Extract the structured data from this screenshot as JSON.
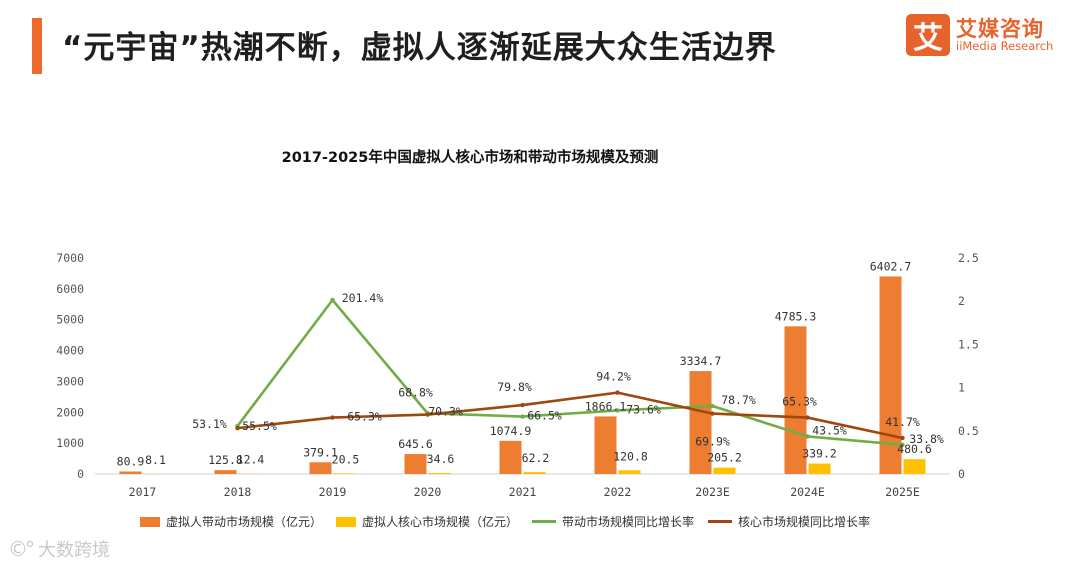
{
  "header": {
    "title": "“元宇宙”热潮不断，虚拟人逐渐延展大众生活边界",
    "logo_mark": "艾",
    "logo_cn": "艾媒咨询",
    "logo_en": "iiMedia Research"
  },
  "watermark": {
    "icon": "©°",
    "text": "大数跨境"
  },
  "colors": {
    "accent": "#ee6a2a",
    "bar1": "#ed7d31",
    "bar2": "#ffc000",
    "line1": "#70ad47",
    "line2": "#9e480e"
  },
  "chart_data": {
    "type": "bar",
    "title": "2017-2025年中国虚拟人核心市场和带动市场规模及预测",
    "categories": [
      "2017",
      "2018",
      "2019",
      "2020",
      "2021",
      "2022",
      "2023E",
      "2024E",
      "2025E"
    ],
    "y_left": {
      "ylim": [
        0,
        7000
      ],
      "ticks": [
        "0",
        "1000",
        "2000",
        "3000",
        "4000",
        "5000",
        "6000",
        "7000"
      ]
    },
    "y_right": {
      "ylim": [
        0,
        2.5
      ],
      "ticks": [
        "0",
        "0.5",
        "1",
        "1.5",
        "2",
        "2.5"
      ]
    },
    "series": [
      {
        "name": "虚拟人带动市场规模（亿元）",
        "type": "bar",
        "axis": "left",
        "values": [
          80.9,
          125.8,
          379.1,
          645.6,
          1074.9,
          1866.1,
          3334.7,
          4785.3,
          6402.7
        ],
        "labels": [
          "80.9",
          "125.8",
          "379.1",
          "645.6",
          "1074.9",
          "1866.1",
          "3334.7",
          "4785.3",
          "6402.7"
        ]
      },
      {
        "name": "虚拟人核心市场规模（亿元）",
        "type": "bar",
        "axis": "left",
        "values": [
          8.1,
          12.4,
          20.5,
          34.6,
          62.2,
          120.8,
          205.2,
          339.2,
          480.6
        ],
        "labels": [
          "8.1",
          "12.4",
          "20.5",
          "34.6",
          "62.2",
          "120.8",
          "205.2",
          "339.2",
          "480.6"
        ]
      },
      {
        "name": "带动市场规模同比增长率",
        "type": "line",
        "axis": "right",
        "values": [
          null,
          0.555,
          2.014,
          0.703,
          0.665,
          0.736,
          0.787,
          0.435,
          0.338
        ],
        "labels": [
          "",
          "55.5%",
          "201.4%",
          "70.3%",
          "66.5%",
          "73.6%",
          "78.7%",
          "43.5%",
          "33.8%"
        ]
      },
      {
        "name": "核心市场规模同比增长率",
        "type": "line",
        "axis": "right",
        "values": [
          null,
          0.531,
          0.653,
          0.688,
          0.798,
          0.942,
          0.699,
          0.653,
          0.417
        ],
        "labels": [
          "",
          "53.1%",
          "65.3%",
          "68.8%",
          "79.8%",
          "94.2%",
          "69.9%",
          "65.3%",
          "41.7%"
        ]
      }
    ]
  }
}
